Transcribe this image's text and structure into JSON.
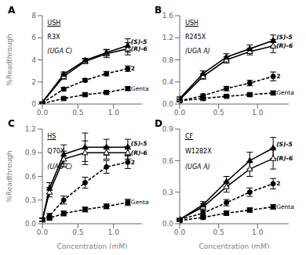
{
  "chart_data": [
    {
      "type": "line",
      "title": "A",
      "annotations": [
        "USH",
        "R3X",
        "(UGA C)"
      ],
      "y_label": "%Readthrough",
      "grid": false,
      "x": [
        0.0,
        0.3,
        0.6,
        0.9,
        1.2
      ],
      "xlim": [
        0,
        1.4
      ],
      "xticks": [
        {
          "value": 0,
          "label": "0.0"
        },
        0.5,
        {
          "value": 1,
          "label": "1.0"
        }
      ],
      "ylim": [
        0,
        8
      ],
      "yticks": [
        0,
        2,
        4,
        6,
        8
      ],
      "series": [
        {
          "name": "(S)-5",
          "color": "#000000",
          "marker": "triangle",
          "line_style": "solid",
          "values": [
            0.15,
            2.7,
            3.95,
            4.65,
            5.3
          ],
          "errors": [
            0.05,
            0.2,
            0.2,
            0.3,
            0.6
          ]
        },
        {
          "name": "(R)-6",
          "color": "#000000",
          "marker": "open_triangle",
          "line_style": "solid",
          "values": [
            0.15,
            2.5,
            3.85,
            4.55,
            5.0
          ],
          "errors": [
            0.05,
            0.25,
            0.2,
            0.35,
            0.55
          ]
        },
        {
          "name": "2",
          "color": "#000000",
          "marker": "circle",
          "line_style": "dashed",
          "values": [
            0.1,
            1.35,
            2.15,
            2.75,
            3.2
          ],
          "errors": [
            0.05,
            0.15,
            0.15,
            0.2,
            0.25
          ]
        },
        {
          "name": "Genta",
          "color": "#000000",
          "marker": "square",
          "line_style": "dashed",
          "values": [
            0.05,
            0.5,
            0.85,
            1.05,
            1.4
          ],
          "errors": [
            0.03,
            0.1,
            0.1,
            0.1,
            0.15
          ]
        }
      ]
    },
    {
      "type": "line",
      "title": "B",
      "annotations": [
        "USH",
        "R245X",
        "(UGA A)"
      ],
      "grid": false,
      "x": [
        0.0,
        0.3,
        0.6,
        0.9,
        1.2
      ],
      "xlim": [
        0,
        1.4
      ],
      "xticks": [
        {
          "value": 0,
          "label": "0.0"
        },
        0.5,
        {
          "value": 1,
          "label": "1.0"
        }
      ],
      "ylim": [
        0,
        1.6
      ],
      "yticks": [
        {
          "value": 0,
          "label": "0.0"
        },
        0.4,
        0.8,
        1.2,
        1.6
      ],
      "series": [
        {
          "name": "(S)-5",
          "color": "#000000",
          "marker": "triangle",
          "line_style": "solid",
          "values": [
            0.1,
            0.55,
            0.85,
            1.0,
            1.15
          ],
          "errors": [
            0.03,
            0.05,
            0.06,
            0.07,
            0.1
          ]
        },
        {
          "name": "(R)-6",
          "color": "#000000",
          "marker": "open_triangle",
          "line_style": "solid",
          "values": [
            0.08,
            0.5,
            0.8,
            0.95,
            1.05
          ],
          "errors": [
            0.03,
            0.05,
            0.06,
            0.06,
            0.12
          ]
        },
        {
          "name": "2",
          "color": "#000000",
          "marker": "circle",
          "line_style": "dashed",
          "values": [
            0.06,
            0.15,
            0.28,
            0.38,
            0.5
          ],
          "errors": [
            0.02,
            0.03,
            0.04,
            0.05,
            0.08
          ]
        },
        {
          "name": "Genta",
          "color": "#000000",
          "marker": "square",
          "line_style": "dashed",
          "values": [
            0.06,
            0.1,
            0.14,
            0.17,
            0.2
          ],
          "errors": [
            0.02,
            0.02,
            0.02,
            0.03,
            0.03
          ]
        }
      ]
    },
    {
      "type": "line",
      "title": "C",
      "annotations": [
        "HS",
        "Q70X",
        "(UAG C)"
      ],
      "y_label": "%Readthrough",
      "x_label": "Concentration (mM)",
      "grid": false,
      "x": [
        0.0,
        0.1,
        0.3,
        0.6,
        0.9,
        1.2
      ],
      "xlim": [
        0,
        1.4
      ],
      "xticks": [
        {
          "value": 0,
          "label": "0.0"
        },
        0.5,
        {
          "value": 1,
          "label": "1.0"
        }
      ],
      "ylim": [
        0,
        1.2
      ],
      "yticks": [
        {
          "value": 0,
          "label": "0.0"
        },
        0.3,
        0.6,
        0.9,
        1.2
      ],
      "series": [
        {
          "name": "(S)-5",
          "color": "#000000",
          "marker": "triangle",
          "line_style": "solid",
          "values": [
            0.05,
            0.45,
            0.88,
            0.97,
            0.97,
            0.97
          ],
          "errors": [
            0.02,
            0.07,
            0.12,
            0.18,
            0.1,
            0.1
          ]
        },
        {
          "name": "(R)-6",
          "color": "#000000",
          "marker": "open_triangle",
          "line_style": "solid",
          "values": [
            0.05,
            0.4,
            0.82,
            0.9,
            0.9,
            0.9
          ],
          "errors": [
            0.02,
            0.06,
            0.1,
            0.15,
            0.08,
            0.08
          ]
        },
        {
          "name": "2",
          "color": "#000000",
          "marker": "circle",
          "line_style": "dashed",
          "values": [
            0.05,
            0.1,
            0.3,
            0.52,
            0.72,
            0.78
          ],
          "errors": [
            0.02,
            0.03,
            0.05,
            0.07,
            0.08,
            0.08
          ]
        },
        {
          "name": "Genta",
          "color": "#000000",
          "marker": "square",
          "line_style": "dashed",
          "values": [
            0.05,
            0.07,
            0.13,
            0.18,
            0.22,
            0.27
          ],
          "errors": [
            0.02,
            0.02,
            0.03,
            0.03,
            0.03,
            0.04
          ]
        }
      ]
    },
    {
      "type": "line",
      "title": "D",
      "annotations": [
        "CF",
        "W1282X",
        "(UGA A)"
      ],
      "x_label": "Concentration (mM)",
      "grid": false,
      "x": [
        0.0,
        0.3,
        0.6,
        0.9,
        1.2
      ],
      "xlim": [
        0,
        1.4
      ],
      "xticks": [
        {
          "value": 0,
          "label": "0.0"
        },
        0.5,
        {
          "value": 1,
          "label": "1.0"
        }
      ],
      "ylim": [
        0,
        0.9
      ],
      "yticks": [
        {
          "value": 0,
          "label": "0.0"
        },
        0.3,
        0.6,
        0.9
      ],
      "series": [
        {
          "name": "(S)-5",
          "color": "#000000",
          "marker": "triangle",
          "line_style": "solid",
          "values": [
            0.04,
            0.18,
            0.4,
            0.6,
            0.72
          ],
          "errors": [
            0.01,
            0.03,
            0.05,
            0.08,
            0.1
          ]
        },
        {
          "name": "(R)-6",
          "color": "#000000",
          "marker": "open_triangle",
          "line_style": "solid",
          "values": [
            0.04,
            0.16,
            0.35,
            0.52,
            0.62
          ],
          "errors": [
            0.01,
            0.03,
            0.05,
            0.07,
            0.1
          ]
        },
        {
          "name": "2",
          "color": "#000000",
          "marker": "circle",
          "line_style": "dashed",
          "values": [
            0.04,
            0.1,
            0.2,
            0.3,
            0.38
          ],
          "errors": [
            0.01,
            0.02,
            0.03,
            0.04,
            0.05
          ]
        },
        {
          "name": "Genta",
          "color": "#000000",
          "marker": "square",
          "line_style": "dashed",
          "values": [
            0.03,
            0.06,
            0.1,
            0.13,
            0.16
          ],
          "errors": [
            0.01,
            0.01,
            0.02,
            0.02,
            0.02
          ]
        }
      ]
    }
  ]
}
